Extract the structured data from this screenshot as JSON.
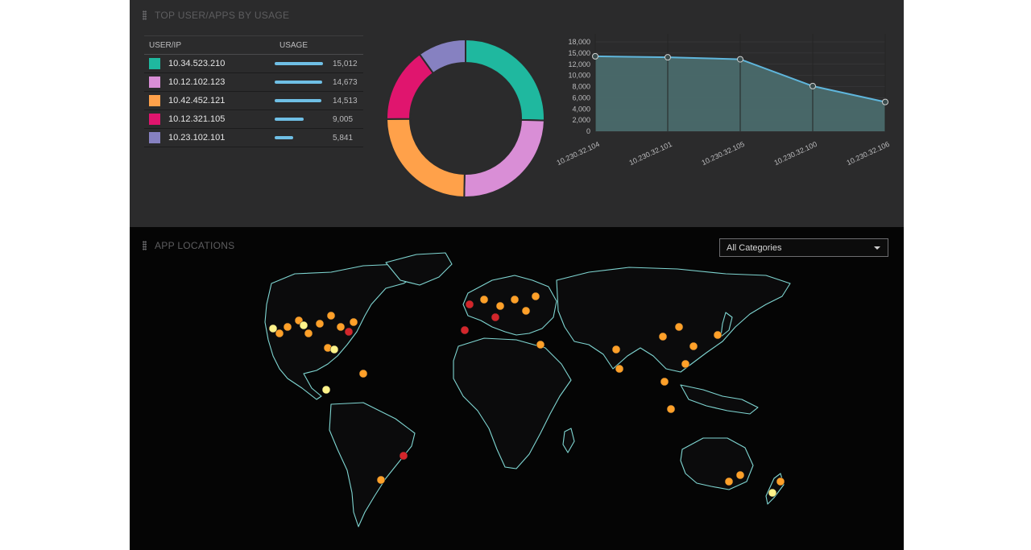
{
  "top_panel": {
    "title": "TOP USER/APPS BY USAGE",
    "table": {
      "headers": {
        "user": "USER/IP",
        "usage": "USAGE"
      },
      "rows": [
        {
          "ip": "10.34.523.210",
          "value": "15,012",
          "usage": 15012,
          "color": "#1fb89f"
        },
        {
          "ip": "10.12.102.123",
          "value": "14,673",
          "usage": 14673,
          "color": "#d98ed6"
        },
        {
          "ip": "10.42.452.121",
          "value": "14,513",
          "usage": 14513,
          "color": "#ffa14a"
        },
        {
          "ip": "10.12.321.105",
          "value": "9,005",
          "usage": 9005,
          "color": "#e0156e"
        },
        {
          "ip": "10.23.102.101",
          "value": "5,841",
          "usage": 5841,
          "color": "#8681c1"
        }
      ]
    }
  },
  "bottom_panel": {
    "title": "APP LOCATIONS",
    "category_select": {
      "value": "All Categories"
    }
  },
  "chart_data": [
    {
      "type": "pie",
      "categories": [
        "10.34.523.210",
        "10.12.102.123",
        "10.42.452.121",
        "10.12.321.105",
        "10.23.102.101"
      ],
      "values": [
        15012,
        14673,
        14513,
        9005,
        5841
      ],
      "colors": [
        "#1fb89f",
        "#d98ed6",
        "#ffa14a",
        "#e0156e",
        "#8681c1"
      ]
    },
    {
      "type": "area",
      "categories": [
        "10.230.32.104",
        "10.230.32.101",
        "10.230.32.105",
        "10.230.32.100",
        "10.230.32.106"
      ],
      "values": [
        15100,
        14900,
        14500,
        9100,
        5900
      ],
      "ylim": [
        0,
        18000
      ],
      "yticks": [
        "0",
        "2,000",
        "4,000",
        "6,000",
        "8,000",
        "10,000",
        "12,000",
        "15,000",
        "18,000"
      ],
      "grid": true,
      "line_color": "#5fb6dc",
      "fill_color": "#4a6a6c"
    }
  ]
}
